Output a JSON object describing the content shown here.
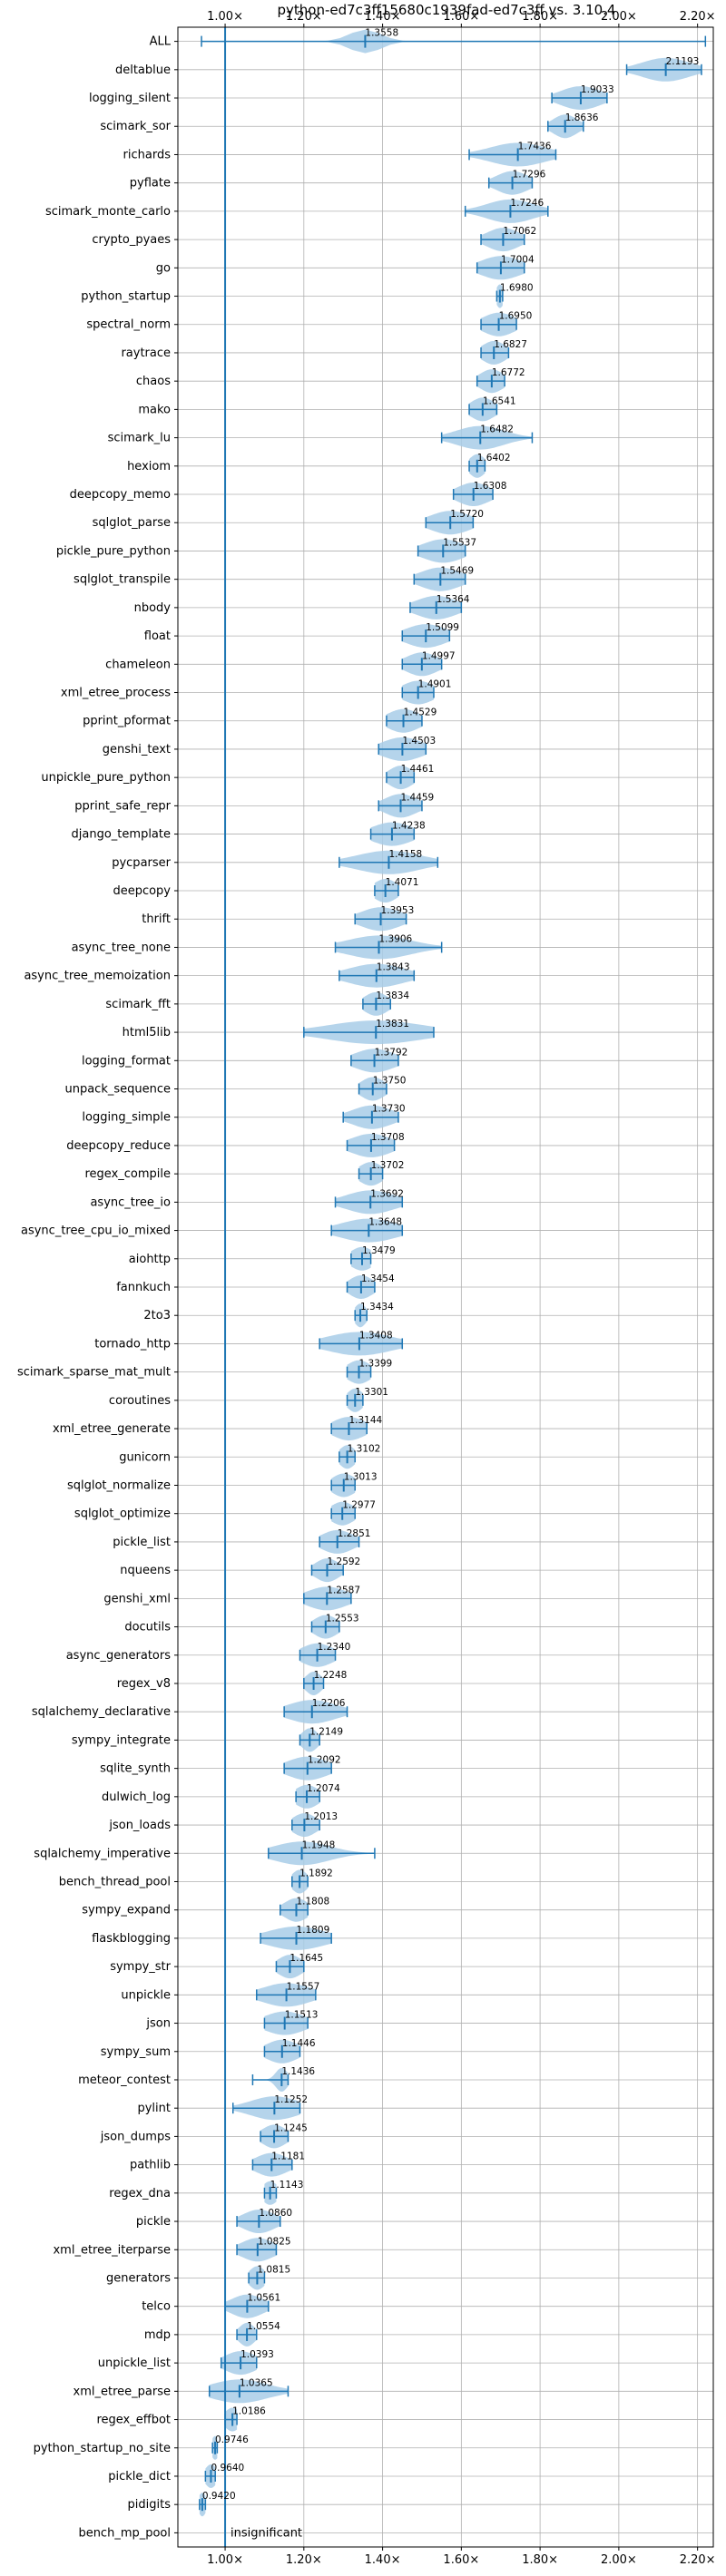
{
  "chart_data": {
    "type": "violin",
    "title": "python-ed7c3ff15680c1939fad-ed7c3ff vs. 3.10.4",
    "xlabel": "",
    "ylabel": "",
    "xlim": [
      0.88,
      2.24
    ],
    "x_ticks": [
      1.0,
      1.2,
      1.4,
      1.6,
      1.8,
      2.0,
      2.2
    ],
    "x_tick_labels": [
      "1.00×",
      "1.20×",
      "1.40×",
      "1.60×",
      "1.80×",
      "2.00×",
      "2.20×"
    ],
    "grid": true,
    "reference_line": 1.0,
    "colors": {
      "violin": "#a8cce8",
      "marker": "#1f77b4",
      "grid": "#b0b0b0",
      "axis": "#000000"
    },
    "benchmarks": [
      {
        "name": "ALL",
        "label": "1.3558",
        "mean": 1.3558,
        "min": 0.94,
        "max": 2.22,
        "spread": 0.04
      },
      {
        "name": "deltablue",
        "label": "2.1193",
        "mean": 2.1193,
        "min": 2.02,
        "max": 2.21,
        "spread": 0.06
      },
      {
        "name": "logging_silent",
        "label": "1.9033",
        "mean": 1.9033,
        "min": 1.83,
        "max": 1.97,
        "spread": 0.05
      },
      {
        "name": "scimark_sor",
        "label": "1.8636",
        "mean": 1.8636,
        "min": 1.82,
        "max": 1.91,
        "spread": 0.03
      },
      {
        "name": "richards",
        "label": "1.7436",
        "mean": 1.7436,
        "min": 1.62,
        "max": 1.84,
        "spread": 0.07
      },
      {
        "name": "pyflate",
        "label": "1.7296",
        "mean": 1.7296,
        "min": 1.67,
        "max": 1.78,
        "spread": 0.04
      },
      {
        "name": "scimark_monte_carlo",
        "label": "1.7246",
        "mean": 1.7246,
        "min": 1.61,
        "max": 1.82,
        "spread": 0.06
      },
      {
        "name": "crypto_pyaes",
        "label": "1.7062",
        "mean": 1.7062,
        "min": 1.65,
        "max": 1.76,
        "spread": 0.04
      },
      {
        "name": "go",
        "label": "1.7004",
        "mean": 1.7004,
        "min": 1.64,
        "max": 1.76,
        "spread": 0.05
      },
      {
        "name": "python_startup",
        "label": "1.6980",
        "mean": 1.698,
        "min": 1.69,
        "max": 1.705,
        "spread": 0.01
      },
      {
        "name": "spectral_norm",
        "label": "1.6950",
        "mean": 1.695,
        "min": 1.65,
        "max": 1.74,
        "spread": 0.04
      },
      {
        "name": "raytrace",
        "label": "1.6827",
        "mean": 1.6827,
        "min": 1.65,
        "max": 1.72,
        "spread": 0.03
      },
      {
        "name": "chaos",
        "label": "1.6772",
        "mean": 1.6772,
        "min": 1.64,
        "max": 1.71,
        "spread": 0.03
      },
      {
        "name": "mako",
        "label": "1.6541",
        "mean": 1.6541,
        "min": 1.62,
        "max": 1.69,
        "spread": 0.03
      },
      {
        "name": "scimark_lu",
        "label": "1.6482",
        "mean": 1.6482,
        "min": 1.55,
        "max": 1.78,
        "spread": 0.06
      },
      {
        "name": "hexiom",
        "label": "1.6402",
        "mean": 1.6402,
        "min": 1.62,
        "max": 1.66,
        "spread": 0.02
      },
      {
        "name": "deepcopy_memo",
        "label": "1.6308",
        "mean": 1.6308,
        "min": 1.58,
        "max": 1.68,
        "spread": 0.04
      },
      {
        "name": "sqlglot_parse",
        "label": "1.5720",
        "mean": 1.572,
        "min": 1.51,
        "max": 1.63,
        "spread": 0.05
      },
      {
        "name": "pickle_pure_python",
        "label": "1.5537",
        "mean": 1.5537,
        "min": 1.49,
        "max": 1.61,
        "spread": 0.05
      },
      {
        "name": "sqlglot_transpile",
        "label": "1.5469",
        "mean": 1.5469,
        "min": 1.48,
        "max": 1.61,
        "spread": 0.05
      },
      {
        "name": "nbody",
        "label": "1.5364",
        "mean": 1.5364,
        "min": 1.47,
        "max": 1.6,
        "spread": 0.05
      },
      {
        "name": "float",
        "label": "1.5099",
        "mean": 1.5099,
        "min": 1.45,
        "max": 1.57,
        "spread": 0.05
      },
      {
        "name": "chameleon",
        "label": "1.4997",
        "mean": 1.4997,
        "min": 1.45,
        "max": 1.55,
        "spread": 0.04
      },
      {
        "name": "xml_etree_process",
        "label": "1.4901",
        "mean": 1.4901,
        "min": 1.45,
        "max": 1.53,
        "spread": 0.04
      },
      {
        "name": "pprint_pformat",
        "label": "1.4529",
        "mean": 1.4529,
        "min": 1.41,
        "max": 1.5,
        "spread": 0.04
      },
      {
        "name": "genshi_text",
        "label": "1.4503",
        "mean": 1.4503,
        "min": 1.39,
        "max": 1.51,
        "spread": 0.05
      },
      {
        "name": "unpickle_pure_python",
        "label": "1.4461",
        "mean": 1.4461,
        "min": 1.41,
        "max": 1.48,
        "spread": 0.03
      },
      {
        "name": "pprint_safe_repr",
        "label": "1.4459",
        "mean": 1.4459,
        "min": 1.39,
        "max": 1.5,
        "spread": 0.04
      },
      {
        "name": "django_template",
        "label": "1.4238",
        "mean": 1.4238,
        "min": 1.37,
        "max": 1.48,
        "spread": 0.05
      },
      {
        "name": "pycparser",
        "label": "1.4158",
        "mean": 1.4158,
        "min": 1.29,
        "max": 1.54,
        "spread": 0.08
      },
      {
        "name": "deepcopy",
        "label": "1.4071",
        "mean": 1.4071,
        "min": 1.38,
        "max": 1.44,
        "spread": 0.03
      },
      {
        "name": "thrift",
        "label": "1.3953",
        "mean": 1.3953,
        "min": 1.33,
        "max": 1.46,
        "spread": 0.05
      },
      {
        "name": "async_tree_none",
        "label": "1.3906",
        "mean": 1.3906,
        "min": 1.28,
        "max": 1.55,
        "spread": 0.08
      },
      {
        "name": "async_tree_memoization",
        "label": "1.3843",
        "mean": 1.3843,
        "min": 1.29,
        "max": 1.48,
        "spread": 0.07
      },
      {
        "name": "scimark_fft",
        "label": "1.3834",
        "mean": 1.3834,
        "min": 1.35,
        "max": 1.42,
        "spread": 0.03
      },
      {
        "name": "html5lib",
        "label": "1.3831",
        "mean": 1.3831,
        "min": 1.2,
        "max": 1.53,
        "spread": 0.12
      },
      {
        "name": "logging_format",
        "label": "1.3792",
        "mean": 1.3792,
        "min": 1.32,
        "max": 1.44,
        "spread": 0.05
      },
      {
        "name": "unpack_sequence",
        "label": "1.3750",
        "mean": 1.375,
        "min": 1.34,
        "max": 1.41,
        "spread": 0.03
      },
      {
        "name": "logging_simple",
        "label": "1.3730",
        "mean": 1.373,
        "min": 1.3,
        "max": 1.44,
        "spread": 0.05
      },
      {
        "name": "deepcopy_reduce",
        "label": "1.3708",
        "mean": 1.3708,
        "min": 1.31,
        "max": 1.43,
        "spread": 0.05
      },
      {
        "name": "regex_compile",
        "label": "1.3702",
        "mean": 1.3702,
        "min": 1.34,
        "max": 1.4,
        "spread": 0.03
      },
      {
        "name": "async_tree_io",
        "label": "1.3692",
        "mean": 1.3692,
        "min": 1.28,
        "max": 1.45,
        "spread": 0.06
      },
      {
        "name": "async_tree_cpu_io_mixed",
        "label": "1.3648",
        "mean": 1.3648,
        "min": 1.27,
        "max": 1.45,
        "spread": 0.07
      },
      {
        "name": "aiohttp",
        "label": "1.3479",
        "mean": 1.3479,
        "min": 1.32,
        "max": 1.37,
        "spread": 0.03
      },
      {
        "name": "fannkuch",
        "label": "1.3454",
        "mean": 1.3454,
        "min": 1.31,
        "max": 1.38,
        "spread": 0.03
      },
      {
        "name": "2to3",
        "label": "1.3434",
        "mean": 1.3434,
        "min": 1.33,
        "max": 1.36,
        "spread": 0.015
      },
      {
        "name": "tornado_http",
        "label": "1.3408",
        "mean": 1.3408,
        "min": 1.24,
        "max": 1.45,
        "spread": 0.08
      },
      {
        "name": "scimark_sparse_mat_mult",
        "label": "1.3399",
        "mean": 1.3399,
        "min": 1.31,
        "max": 1.37,
        "spread": 0.03
      },
      {
        "name": "coroutines",
        "label": "1.3301",
        "mean": 1.3301,
        "min": 1.31,
        "max": 1.35,
        "spread": 0.02
      },
      {
        "name": "xml_etree_generate",
        "label": "1.3144",
        "mean": 1.3144,
        "min": 1.27,
        "max": 1.36,
        "spread": 0.04
      },
      {
        "name": "gunicorn",
        "label": "1.3102",
        "mean": 1.3102,
        "min": 1.29,
        "max": 1.33,
        "spread": 0.02
      },
      {
        "name": "sqlglot_normalize",
        "label": "1.3013",
        "mean": 1.3013,
        "min": 1.27,
        "max": 1.33,
        "spread": 0.03
      },
      {
        "name": "sqlglot_optimize",
        "label": "1.2977",
        "mean": 1.2977,
        "min": 1.27,
        "max": 1.33,
        "spread": 0.03
      },
      {
        "name": "pickle_list",
        "label": "1.2851",
        "mean": 1.2851,
        "min": 1.24,
        "max": 1.34,
        "spread": 0.04
      },
      {
        "name": "nqueens",
        "label": "1.2592",
        "mean": 1.2592,
        "min": 1.22,
        "max": 1.3,
        "spread": 0.03
      },
      {
        "name": "genshi_xml",
        "label": "1.2587",
        "mean": 1.2587,
        "min": 1.2,
        "max": 1.32,
        "spread": 0.05
      },
      {
        "name": "docutils",
        "label": "1.2553",
        "mean": 1.2553,
        "min": 1.22,
        "max": 1.29,
        "spread": 0.03
      },
      {
        "name": "async_generators",
        "label": "1.2340",
        "mean": 1.234,
        "min": 1.19,
        "max": 1.28,
        "spread": 0.04
      },
      {
        "name": "regex_v8",
        "label": "1.2248",
        "mean": 1.2248,
        "min": 1.2,
        "max": 1.25,
        "spread": 0.02
      },
      {
        "name": "sqlalchemy_declarative",
        "label": "1.2206",
        "mean": 1.2206,
        "min": 1.15,
        "max": 1.31,
        "spread": 0.06
      },
      {
        "name": "sympy_integrate",
        "label": "1.2149",
        "mean": 1.2149,
        "min": 1.19,
        "max": 1.24,
        "spread": 0.02
      },
      {
        "name": "sqlite_synth",
        "label": "1.2092",
        "mean": 1.2092,
        "min": 1.15,
        "max": 1.27,
        "spread": 0.05
      },
      {
        "name": "dulwich_log",
        "label": "1.2074",
        "mean": 1.2074,
        "min": 1.18,
        "max": 1.24,
        "spread": 0.03
      },
      {
        "name": "json_loads",
        "label": "1.2013",
        "mean": 1.2013,
        "min": 1.17,
        "max": 1.24,
        "spread": 0.03
      },
      {
        "name": "sqlalchemy_imperative",
        "label": "1.1948",
        "mean": 1.1948,
        "min": 1.11,
        "max": 1.38,
        "spread": 0.07
      },
      {
        "name": "bench_thread_pool",
        "label": "1.1892",
        "mean": 1.1892,
        "min": 1.17,
        "max": 1.21,
        "spread": 0.02
      },
      {
        "name": "sympy_expand",
        "label": "1.1808",
        "mean": 1.1808,
        "min": 1.14,
        "max": 1.21,
        "spread": 0.03
      },
      {
        "name": "flaskblogging",
        "label": "1.1809",
        "mean": 1.1809,
        "min": 1.09,
        "max": 1.27,
        "spread": 0.07
      },
      {
        "name": "sympy_str",
        "label": "1.1645",
        "mean": 1.1645,
        "min": 1.13,
        "max": 1.2,
        "spread": 0.03
      },
      {
        "name": "unpickle",
        "label": "1.1557",
        "mean": 1.1557,
        "min": 1.08,
        "max": 1.23,
        "spread": 0.06
      },
      {
        "name": "json",
        "label": "1.1513",
        "mean": 1.1513,
        "min": 1.1,
        "max": 1.21,
        "spread": 0.05
      },
      {
        "name": "sympy_sum",
        "label": "1.1446",
        "mean": 1.1446,
        "min": 1.1,
        "max": 1.19,
        "spread": 0.04
      },
      {
        "name": "meteor_contest",
        "label": "1.1436",
        "mean": 1.1436,
        "min": 1.07,
        "max": 1.16,
        "spread": 0.015
      },
      {
        "name": "pylint",
        "label": "1.1252",
        "mean": 1.1252,
        "min": 1.02,
        "max": 1.19,
        "spread": 0.06
      },
      {
        "name": "json_dumps",
        "label": "1.1245",
        "mean": 1.1245,
        "min": 1.09,
        "max": 1.16,
        "spread": 0.03
      },
      {
        "name": "pathlib",
        "label": "1.1181",
        "mean": 1.1181,
        "min": 1.07,
        "max": 1.17,
        "spread": 0.04
      },
      {
        "name": "regex_dna",
        "label": "1.1143",
        "mean": 1.1143,
        "min": 1.1,
        "max": 1.13,
        "spread": 0.02
      },
      {
        "name": "pickle",
        "label": "1.0860",
        "mean": 1.086,
        "min": 1.03,
        "max": 1.14,
        "spread": 0.04
      },
      {
        "name": "xml_etree_iterparse",
        "label": "1.0825",
        "mean": 1.0825,
        "min": 1.03,
        "max": 1.13,
        "spread": 0.04
      },
      {
        "name": "generators",
        "label": "1.0815",
        "mean": 1.0815,
        "min": 1.06,
        "max": 1.1,
        "spread": 0.02
      },
      {
        "name": "telco",
        "label": "1.0561",
        "mean": 1.0561,
        "min": 1.0,
        "max": 1.11,
        "spread": 0.04
      },
      {
        "name": "mdp",
        "label": "1.0554",
        "mean": 1.0554,
        "min": 1.03,
        "max": 1.08,
        "spread": 0.02
      },
      {
        "name": "unpickle_list",
        "label": "1.0393",
        "mean": 1.0393,
        "min": 0.99,
        "max": 1.08,
        "spread": 0.04
      },
      {
        "name": "xml_etree_parse",
        "label": "1.0365",
        "mean": 1.0365,
        "min": 0.96,
        "max": 1.16,
        "spread": 0.07
      },
      {
        "name": "regex_effbot",
        "label": "1.0186",
        "mean": 1.0186,
        "min": 1.0,
        "max": 1.03,
        "spread": 0.02
      },
      {
        "name": "python_startup_no_site",
        "label": "0.9746",
        "mean": 0.9746,
        "min": 0.968,
        "max": 0.98,
        "spread": 0.01
      },
      {
        "name": "pickle_dict",
        "label": "0.9640",
        "mean": 0.964,
        "min": 0.95,
        "max": 0.975,
        "spread": 0.015
      },
      {
        "name": "pidigits",
        "label": "0.9420",
        "mean": 0.942,
        "min": 0.935,
        "max": 0.95,
        "spread": 0.01
      },
      {
        "name": "bench_mp_pool",
        "label": "insignificant",
        "mean": null,
        "min": null,
        "max": null,
        "spread": 0
      }
    ]
  }
}
